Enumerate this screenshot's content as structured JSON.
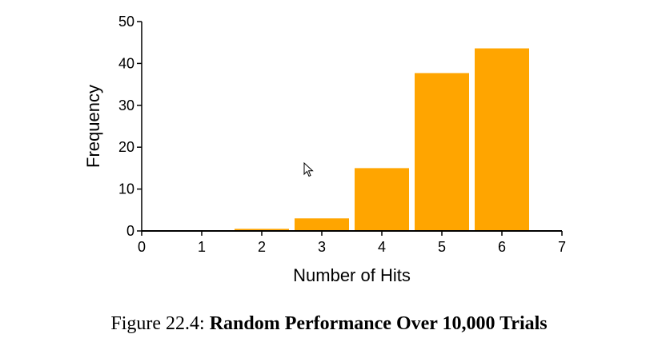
{
  "chart_data": {
    "type": "bar",
    "x": [
      2,
      3,
      4,
      5,
      6
    ],
    "values": [
      0.5,
      3,
      15,
      37.7,
      43.6
    ],
    "xlabel": "Number of Hits",
    "ylabel": "Frequency",
    "xlim": [
      0,
      7
    ],
    "ylim": [
      0,
      50
    ],
    "xticks": [
      0,
      1,
      2,
      3,
      4,
      5,
      6,
      7
    ],
    "yticks": [
      0,
      10,
      20,
      30,
      40,
      50
    ],
    "grid": false,
    "bar_color": "#ffa500"
  },
  "caption": {
    "prefix": "Figure 22.4:",
    "title": "Random Performance Over 10,000 Trials"
  },
  "cursor_icon": "arrow-cursor-icon"
}
